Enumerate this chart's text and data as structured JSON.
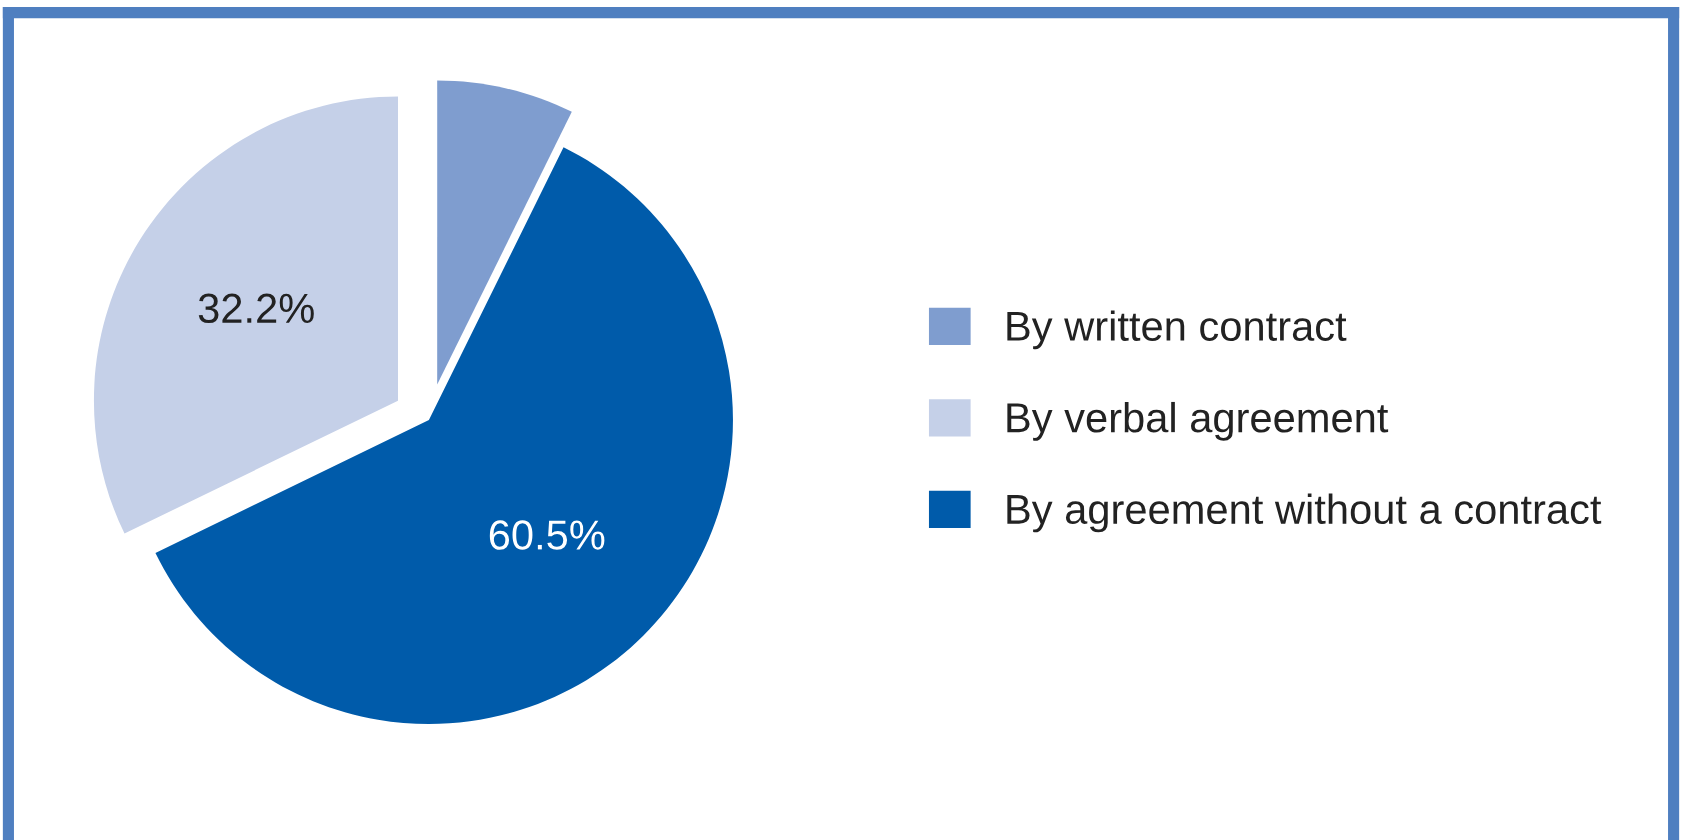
{
  "chart_data": {
    "type": "pie",
    "categories": [
      "By written contract",
      "By verbal agreement",
      "By agreement without a contract"
    ],
    "values": [
      7.3,
      32.2,
      60.5
    ],
    "colors": [
      "#7f9dcf",
      "#c5d0e8",
      "#005baa"
    ],
    "value_labels": [
      null,
      "32.2%",
      "60.5%"
    ],
    "legend": "right"
  }
}
